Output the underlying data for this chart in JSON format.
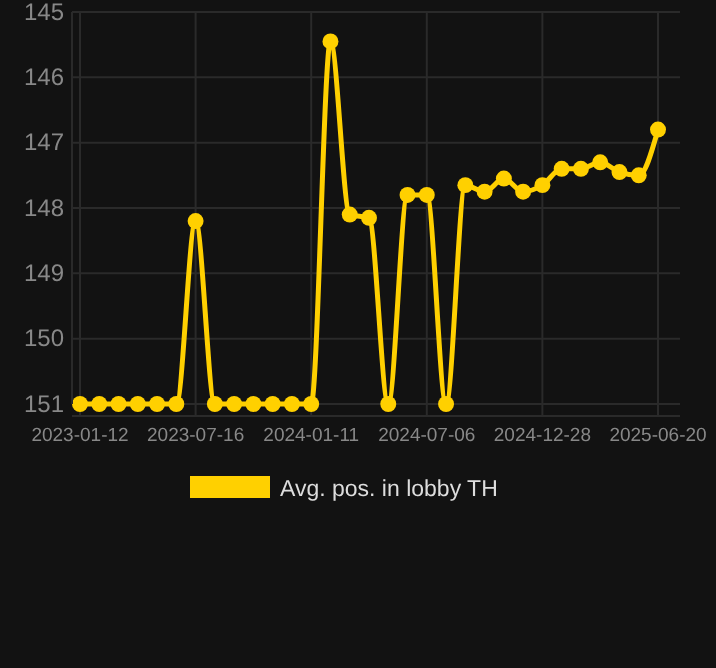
{
  "chart_data": {
    "type": "line",
    "categories": [
      "2023-01-12",
      null,
      null,
      null,
      null,
      null,
      "2023-07-16",
      null,
      null,
      null,
      null,
      null,
      "2024-01-11",
      null,
      null,
      null,
      null,
      null,
      "2024-07-06",
      null,
      null,
      null,
      null,
      null,
      "2024-12-28",
      null,
      null,
      null,
      null,
      null,
      "2025-06-20"
    ],
    "series": [
      {
        "name": "Avg. pos. in lobby TH",
        "color": "#ffd000",
        "values": [
          151,
          151,
          151,
          151,
          151,
          151,
          148.2,
          151,
          151,
          151,
          151,
          151,
          151,
          145.45,
          148.1,
          148.15,
          151,
          147.8,
          147.8,
          151,
          147.65,
          147.75,
          147.55,
          147.75,
          147.65,
          147.4,
          147.4,
          147.3,
          147.45,
          147.5,
          146.8
        ]
      }
    ],
    "ylim": [
      151,
      145
    ],
    "yticks": [
      145,
      146,
      147,
      148,
      149,
      150,
      151
    ],
    "grid": true,
    "legend": "bottom",
    "marker": "circle",
    "line_style": "solid"
  }
}
